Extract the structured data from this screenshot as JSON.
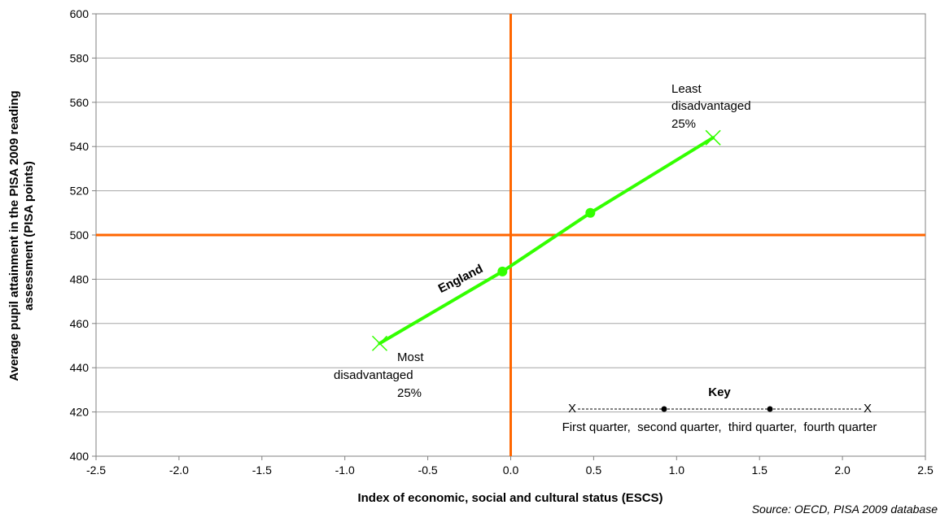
{
  "chart_data": {
    "type": "line",
    "xlabel": "Index of economic, social and cultural status (ESCS)",
    "ylabel_line1": "Average pupil attainment in the PISA 2009 reading",
    "ylabel_line2": "assessment (PISA points)",
    "xlim": [
      -2.5,
      2.5
    ],
    "ylim": [
      400,
      600
    ],
    "x_ticks": [
      "-2.5",
      "-2.0",
      "-1.5",
      "-1.0",
      "-0.5",
      "0.0",
      "0.5",
      "1.0",
      "1.5",
      "2.0",
      "2.5"
    ],
    "y_ticks": [
      "400",
      "420",
      "440",
      "460",
      "480",
      "500",
      "520",
      "540",
      "560",
      "580",
      "600"
    ],
    "grid": "horizontal",
    "series": [
      {
        "name": "England",
        "color": "#33ff00",
        "points": [
          {
            "x": -0.79,
            "y": 451
          },
          {
            "x": -0.05,
            "y": 483.5
          },
          {
            "x": 0.48,
            "y": 510
          },
          {
            "x": 1.22,
            "y": 544
          }
        ]
      }
    ],
    "reference_lines": {
      "x": 0.0,
      "y": 500,
      "color": "#ff6600"
    },
    "annotations": {
      "least_line1": "Least",
      "least_line2": "disadvantaged",
      "least_line3": "25%",
      "most_line1": "Most",
      "most_line2": "disadvantaged",
      "most_line3": "25%"
    },
    "key": {
      "title": "Key",
      "marker_start": "X",
      "marker_end": "X",
      "labels": "First quarter,  second quarter,  third quarter,  fourth quarter"
    },
    "source": "Source: OECD, PISA 2009 database"
  }
}
